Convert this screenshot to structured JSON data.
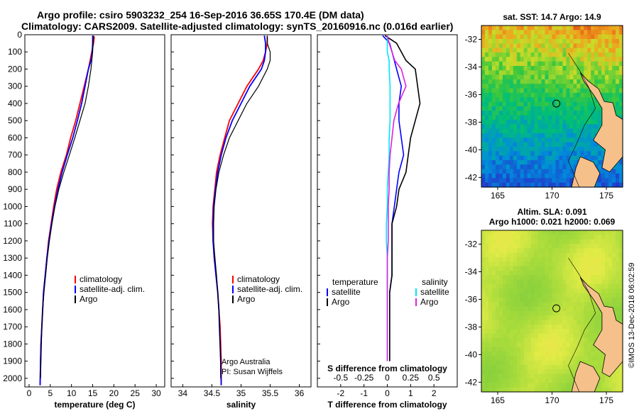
{
  "header": {
    "line1": "Argo profile: csiro 5903232_254 16-Sep-2016 36.65S 170.4E (DM data)",
    "line2": "Climatology: CARS2009. Satellite-adjusted climatology: synTS_20160916.nc (0.016d earlier)"
  },
  "colors": {
    "climatology": "#ff0000",
    "satellite": "#0000ff",
    "argo": "#000000",
    "sat_salinity": "#00e5ff",
    "argo_salinity": "#e020e0",
    "land": "#f5c08a"
  },
  "chart_data": [
    {
      "type": "line",
      "xlabel": "temperature (deg C)",
      "ylabel": "",
      "xlim": [
        -1,
        32
      ],
      "ylim": [
        2050,
        0
      ],
      "xticks": [
        "0",
        "5",
        "10",
        "15",
        "20",
        "25",
        "30"
      ],
      "yticks": [
        "0",
        "100",
        "200",
        "300",
        "400",
        "500",
        "600",
        "700",
        "800",
        "900",
        "1000",
        "1100",
        "1200",
        "1300",
        "1400",
        "1500",
        "1600",
        "1700",
        "1800",
        "1900",
        "2000"
      ],
      "legend": [
        "climatology",
        "satellite-adj. clim.",
        "Argo"
      ],
      "series": [
        {
          "name": "climatology",
          "x": [
            15.4,
            15.2,
            14.8,
            14.4,
            14.0,
            13.0,
            12.0,
            11.0,
            9.8,
            8.8,
            7.5,
            6.5,
            5.8,
            5.2,
            4.6,
            4.2,
            3.8,
            3.4,
            3.2,
            3.0,
            2.8,
            2.7,
            2.6
          ],
          "y": [
            10,
            50,
            100,
            150,
            200,
            300,
            400,
            500,
            600,
            700,
            800,
            900,
            1000,
            1100,
            1200,
            1300,
            1400,
            1500,
            1600,
            1700,
            1800,
            1900,
            2040
          ]
        },
        {
          "name": "satellite-adj. clim.",
          "x": [
            15.0,
            15.0,
            14.9,
            14.6,
            14.0,
            13.2,
            12.4,
            11.4,
            10.3,
            9.0,
            7.8,
            6.8,
            6.0,
            5.3,
            4.7,
            4.2,
            3.8,
            3.4,
            3.2,
            3.0,
            2.8,
            2.7,
            2.6
          ],
          "y": [
            5,
            50,
            100,
            150,
            200,
            300,
            400,
            500,
            600,
            700,
            800,
            900,
            1000,
            1100,
            1200,
            1300,
            1400,
            1500,
            1600,
            1700,
            1800,
            1900,
            2040
          ]
        },
        {
          "name": "Argo",
          "x": [
            15.2,
            15.1,
            15.0,
            14.8,
            14.6,
            14.0,
            13.2,
            12.0,
            10.8,
            9.5,
            8.2,
            7.0,
            6.1,
            5.4,
            4.8,
            4.3,
            3.9,
            3.5,
            3.2,
            3.0,
            2.9,
            2.8,
            2.7
          ],
          "y": [
            5,
            50,
            100,
            150,
            200,
            300,
            400,
            500,
            600,
            700,
            800,
            900,
            1000,
            1100,
            1200,
            1300,
            1400,
            1500,
            1600,
            1700,
            1800,
            1900,
            2000
          ]
        }
      ]
    },
    {
      "type": "line",
      "xlabel": "salinity",
      "xlim": [
        33.8,
        36.2
      ],
      "ylim": [
        2050,
        0
      ],
      "xticks": [
        "34",
        "34.5",
        "35",
        "35.5",
        "36"
      ],
      "legend": [
        "climatology",
        "satellite-adj. clim.",
        "Argo"
      ],
      "series": [
        {
          "name": "climatology",
          "x": [
            35.45,
            35.45,
            35.42,
            35.38,
            35.3,
            35.1,
            34.95,
            34.8,
            34.72,
            34.64,
            34.58,
            34.55,
            34.52,
            34.51,
            34.52,
            34.55,
            34.57,
            34.6,
            34.62,
            34.64,
            34.65,
            34.66,
            34.66
          ],
          "y": [
            10,
            50,
            100,
            150,
            200,
            300,
            400,
            500,
            600,
            700,
            800,
            900,
            1000,
            1100,
            1200,
            1300,
            1400,
            1500,
            1600,
            1700,
            1800,
            1900,
            2040
          ]
        },
        {
          "name": "satellite-adj. clim.",
          "x": [
            35.4,
            35.42,
            35.42,
            35.4,
            35.35,
            35.15,
            35.0,
            34.85,
            34.74,
            34.66,
            34.6,
            34.56,
            34.53,
            34.52,
            34.52,
            34.54,
            34.57,
            34.6,
            34.62,
            34.63,
            34.64,
            34.65,
            34.66
          ],
          "y": [
            5,
            50,
            100,
            150,
            200,
            300,
            400,
            500,
            600,
            700,
            800,
            900,
            1000,
            1100,
            1200,
            1300,
            1400,
            1500,
            1600,
            1700,
            1800,
            1900,
            2040
          ]
        },
        {
          "name": "Argo",
          "x": [
            35.45,
            35.45,
            35.5,
            35.5,
            35.45,
            35.3,
            35.1,
            34.95,
            34.8,
            34.7,
            34.62,
            34.57,
            34.54,
            34.53,
            34.53,
            34.55,
            34.58,
            34.6,
            34.62,
            34.63,
            34.64,
            34.65,
            34.65
          ],
          "y": [
            5,
            50,
            100,
            150,
            200,
            300,
            400,
            500,
            600,
            700,
            800,
            900,
            1000,
            1100,
            1200,
            1300,
            1400,
            1500,
            1600,
            1700,
            1800,
            1900,
            2000
          ]
        }
      ],
      "annotations": [
        "Argo Australia",
        "PI: Susan Wijffels"
      ]
    },
    {
      "type": "line",
      "xlabel": "T difference from climatology",
      "xlabel_top": "S difference from climatology",
      "xlim": [
        -3,
        3
      ],
      "ylim": [
        2050,
        0
      ],
      "xticks": [
        "-2",
        "-1",
        "0",
        "1",
        "2"
      ],
      "xticks_top": [
        "-0.5",
        "-0.25",
        "0",
        "0.25",
        "0.5"
      ],
      "legend_temperature": {
        "title": "temperature",
        "items": [
          "satellite",
          "Argo"
        ]
      },
      "legend_salinity": {
        "title": "salinity",
        "items": [
          "satellite",
          "Argo"
        ]
      },
      "series": [
        {
          "name": "T satellite",
          "x": [
            -0.2,
            0.1,
            0.2,
            0.3,
            0.4,
            0.6,
            0.5,
            0.5,
            0.6,
            0.7,
            0.5,
            0.4,
            0.3,
            0.2,
            0.2,
            0.2,
            0.2,
            0.1,
            0.1,
            0.1,
            0.1,
            0.1
          ],
          "y": [
            5,
            50,
            100,
            150,
            200,
            300,
            400,
            500,
            600,
            700,
            800,
            900,
            1000,
            1100,
            1200,
            1300,
            1400,
            1500,
            1600,
            1700,
            1800,
            1900
          ]
        },
        {
          "name": "T Argo",
          "x": [
            -0.1,
            0.4,
            0.6,
            0.8,
            1.2,
            1.3,
            1.4,
            1.2,
            1.0,
            0.9,
            0.8,
            0.5,
            0.4,
            0.2,
            0.2,
            0.2,
            0.2,
            0.1,
            0.1,
            0.1,
            0.1,
            0.1
          ],
          "y": [
            5,
            50,
            100,
            150,
            200,
            300,
            400,
            500,
            600,
            700,
            800,
            900,
            1000,
            1100,
            1200,
            1300,
            1400,
            1500,
            1600,
            1700,
            1800,
            1900
          ]
        },
        {
          "name": "S satellite",
          "x": [
            0.0,
            0.0,
            0.0,
            0.02,
            0.02,
            0.03,
            0.03,
            0.03,
            0.02,
            0.02,
            0.01,
            0.0,
            0.0,
            -0.01,
            -0.01,
            0.0,
            0.0,
            0.0,
            0.0,
            0.0,
            0.0,
            0.0
          ],
          "y": [
            5,
            50,
            100,
            150,
            200,
            300,
            400,
            500,
            600,
            700,
            800,
            900,
            1000,
            1100,
            1200,
            1300,
            1400,
            1500,
            1600,
            1700,
            1800,
            1900
          ]
        },
        {
          "name": "S Argo",
          "x": [
            0.0,
            0.02,
            0.05,
            0.08,
            0.15,
            0.2,
            0.12,
            0.07,
            0.05,
            0.03,
            0.02,
            0.02,
            0.01,
            0.01,
            0.01,
            0.0,
            0.0,
            0.0,
            0.0,
            0.0,
            0.0,
            0.0
          ],
          "y": [
            5,
            50,
            100,
            150,
            200,
            300,
            400,
            500,
            600,
            700,
            800,
            900,
            1000,
            1100,
            1200,
            1300,
            1400,
            1500,
            1600,
            1700,
            1800,
            1900
          ]
        }
      ]
    },
    {
      "type": "heatmap",
      "title": "sat. SST: 14.7 Argo: 14.9",
      "xlim": [
        163.5,
        176.5
      ],
      "ylim": [
        -42.7,
        -31
      ],
      "xticks": [
        "165",
        "170",
        "175"
      ],
      "yticks": [
        "-32",
        "-34",
        "-36",
        "-38",
        "-40",
        "-42"
      ],
      "marker": {
        "lon": 170.4,
        "lat": -36.65
      }
    },
    {
      "type": "heatmap",
      "title_line1": "Altim. SLA: 0.091",
      "title_line2": "Argo h1000: 0.021 h2000: 0.069",
      "xlim": [
        163.5,
        176.5
      ],
      "ylim": [
        -42.7,
        -31
      ],
      "xticks": [
        "165",
        "170",
        "175"
      ],
      "yticks": [
        "-32",
        "-34",
        "-36",
        "-38",
        "-40",
        "-42"
      ],
      "marker": {
        "lon": 170.4,
        "lat": -36.65
      }
    }
  ],
  "footer": {
    "credit": "©IMOS 13-Dec-2018 06:02:59"
  }
}
